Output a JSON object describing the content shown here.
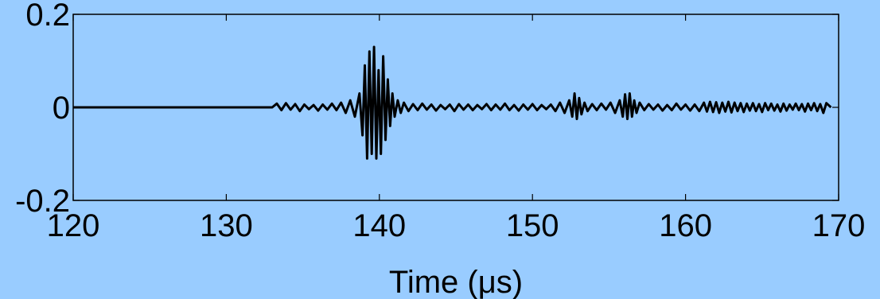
{
  "page": {
    "background": "#99ccff"
  },
  "chart_data": {
    "type": "line",
    "title": "",
    "xlabel": "Time (μs)",
    "ylabel": "",
    "xlim": [
      120,
      170
    ],
    "ylim": [
      -0.2,
      0.2
    ],
    "xticks": [
      120,
      130,
      140,
      150,
      160,
      170
    ],
    "xtick_labels": [
      "120",
      "130",
      "140",
      "150",
      "160",
      "170"
    ],
    "yticks": [
      -0.2,
      0,
      0.2
    ],
    "ytick_labels": [
      "-0.2",
      "0",
      "0.2"
    ],
    "grid": false,
    "legend": "none",
    "line_color": "#000000",
    "plot_background": "#99ccff",
    "series": [
      {
        "x": [
          120,
          133.0,
          133.3,
          133.6,
          133.9,
          134.2,
          134.5,
          134.8,
          135.1,
          135.4,
          135.7,
          136.0,
          136.3,
          136.6,
          136.9,
          137.2,
          137.5,
          137.8,
          138.1,
          138.4,
          138.7,
          138.9,
          139.05,
          139.2,
          139.35,
          139.5,
          139.65,
          139.8,
          139.95,
          140.1,
          140.25,
          140.4,
          140.55,
          140.7,
          140.85,
          141.0,
          141.2,
          141.4,
          141.6,
          141.9,
          142.2,
          142.5,
          142.8,
          143.1,
          143.4,
          143.7,
          144.0,
          144.3,
          144.6,
          144.9,
          145.2,
          145.5,
          145.8,
          146.1,
          146.4,
          146.7,
          147.0,
          147.3,
          147.6,
          147.9,
          148.2,
          148.5,
          148.8,
          149.1,
          149.4,
          149.7,
          150.0,
          150.3,
          150.6,
          150.9,
          151.2,
          151.5,
          151.8,
          152.1,
          152.4,
          152.6,
          152.75,
          152.9,
          153.05,
          153.2,
          153.4,
          153.6,
          153.9,
          154.2,
          154.5,
          154.8,
          155.1,
          155.4,
          155.7,
          155.9,
          156.05,
          156.2,
          156.35,
          156.5,
          156.65,
          156.8,
          157.0,
          157.3,
          157.6,
          157.9,
          158.2,
          158.5,
          158.8,
          159.1,
          159.4,
          159.7,
          160.0,
          160.3,
          160.6,
          160.9,
          161.2,
          161.4,
          161.6,
          161.8,
          162.0,
          162.2,
          162.4,
          162.6,
          162.8,
          163.0,
          163.2,
          163.4,
          163.6,
          163.8,
          164.0,
          164.2,
          164.4,
          164.6,
          164.8,
          165.0,
          165.2,
          165.4,
          165.6,
          165.8,
          166.0,
          166.2,
          166.4,
          166.6,
          166.8,
          167.0,
          167.2,
          167.4,
          167.6,
          167.8,
          168.0,
          168.2,
          168.4,
          168.6,
          168.8,
          169.0,
          169.2,
          169.5
        ],
        "y": [
          0,
          0,
          0.008,
          -0.006,
          0.009,
          -0.005,
          0.007,
          -0.008,
          0.006,
          -0.004,
          0.005,
          -0.007,
          0.006,
          -0.005,
          0.008,
          -0.006,
          0.01,
          -0.012,
          0.015,
          -0.02,
          0.03,
          -0.06,
          0.09,
          -0.11,
          0.12,
          -0.1,
          0.13,
          -0.11,
          0.08,
          -0.1,
          0.11,
          -0.07,
          0.06,
          -0.04,
          0.03,
          -0.02,
          0.015,
          -0.012,
          0.01,
          -0.008,
          0.007,
          -0.006,
          0.008,
          -0.005,
          0.006,
          -0.007,
          0.005,
          -0.004,
          0.006,
          -0.008,
          0.007,
          -0.005,
          0.006,
          -0.006,
          0.005,
          -0.004,
          0.007,
          -0.006,
          0.006,
          -0.005,
          0.008,
          -0.006,
          0.005,
          -0.007,
          0.006,
          -0.005,
          0.007,
          -0.006,
          0.005,
          -0.004,
          0.006,
          -0.008,
          0.01,
          -0.012,
          0.015,
          -0.02,
          0.03,
          -0.025,
          0.02,
          -0.015,
          0.01,
          -0.008,
          0.007,
          -0.006,
          0.008,
          -0.005,
          0.01,
          -0.012,
          0.015,
          -0.02,
          0.028,
          -0.025,
          0.03,
          -0.02,
          0.015,
          -0.012,
          0.01,
          -0.006,
          0.007,
          -0.005,
          0.006,
          -0.007,
          0.005,
          -0.006,
          0.008,
          -0.005,
          0.006,
          -0.007,
          0.006,
          -0.008,
          0.01,
          -0.009,
          0.012,
          -0.01,
          0.011,
          -0.012,
          0.01,
          -0.009,
          0.012,
          -0.011,
          0.01,
          -0.008,
          0.009,
          -0.01,
          0.008,
          -0.007,
          0.009,
          -0.008,
          0.007,
          -0.01,
          0.009,
          -0.006,
          0.008,
          -0.007,
          0.006,
          -0.009,
          0.008,
          -0.007,
          0.006,
          -0.005,
          0.008,
          -0.006,
          0.007,
          -0.009,
          0.008,
          -0.006,
          0.009,
          -0.008,
          0.007,
          -0.012,
          0.009,
          0
        ]
      }
    ]
  }
}
